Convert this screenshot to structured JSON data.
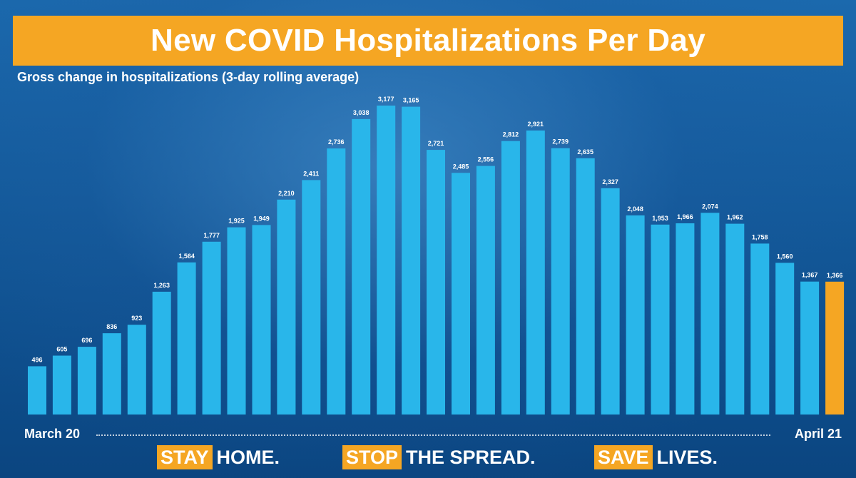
{
  "chart_data": {
    "type": "bar",
    "title": "New COVID Hospitalizations Per Day",
    "subtitle": "Gross change in hospitalizations (3-day rolling average)",
    "x_start_label": "March 20",
    "x_end_label": "April 21",
    "values": [
      496,
      605,
      696,
      836,
      923,
      1263,
      1564,
      1777,
      1925,
      1949,
      2210,
      2411,
      2736,
      3038,
      3177,
      3165,
      2721,
      2485,
      2556,
      2812,
      2921,
      2739,
      2635,
      2327,
      2048,
      1953,
      1966,
      2074,
      1962,
      1758,
      1560,
      1367,
      1366
    ],
    "labels": [
      "496",
      "605",
      "696",
      "836",
      "923",
      "1,263",
      "1,564",
      "1,777",
      "1,925",
      "1,949",
      "2,210",
      "2,411",
      "2,736",
      "3,038",
      "3,177",
      "3,165",
      "2,721",
      "2,485",
      "2,556",
      "2,812",
      "2,921",
      "2,739",
      "2,635",
      "2,327",
      "2,048",
      "1,953",
      "1,966",
      "2,074",
      "1,962",
      "1,758",
      "1,560",
      "1,367",
      "1,366"
    ],
    "highlight_index": 32,
    "colors": {
      "bar": "#29b6ea",
      "highlight": "#f5a623"
    },
    "ylim": [
      0,
      3200
    ]
  },
  "slogans": [
    {
      "highlight": "STAY",
      "rest": "HOME."
    },
    {
      "highlight": "STOP",
      "rest": "THE SPREAD."
    },
    {
      "highlight": "SAVE",
      "rest": "LIVES."
    }
  ]
}
